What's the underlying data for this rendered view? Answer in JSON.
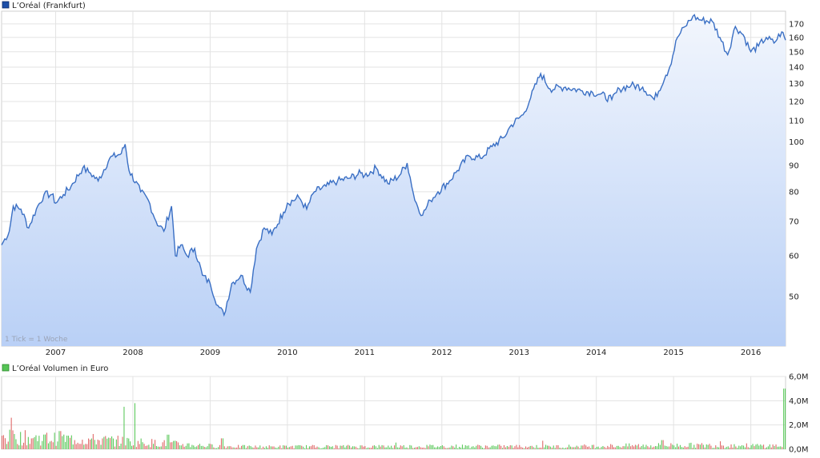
{
  "chart_data": [
    {
      "type": "area",
      "legend": "L’Oréal (Frankfurt)",
      "series_color": "#3a6fc4",
      "fill_top": "#f2f6fd",
      "fill_bottom": "#b9d0f6",
      "note": "1 Tick = 1 Woche",
      "yscale": "log",
      "ylim": [
        40,
        180
      ],
      "yticks": [
        50,
        60,
        70,
        80,
        90,
        100,
        110,
        120,
        130,
        140,
        150,
        160,
        170
      ],
      "xlim": [
        2006.3,
        2016.45
      ],
      "xticks": [
        "2007",
        "2008",
        "2009",
        "2010",
        "2011",
        "2012",
        "2013",
        "2014",
        "2015",
        "2016"
      ],
      "points": [
        [
          2006.3,
          63
        ],
        [
          2006.4,
          67
        ],
        [
          2006.45,
          75
        ],
        [
          2006.55,
          74
        ],
        [
          2006.65,
          68
        ],
        [
          2006.75,
          74
        ],
        [
          2006.85,
          79
        ],
        [
          2006.95,
          79
        ],
        [
          2007.0,
          76
        ],
        [
          2007.1,
          79
        ],
        [
          2007.2,
          82
        ],
        [
          2007.35,
          89
        ],
        [
          2007.45,
          87
        ],
        [
          2007.55,
          84
        ],
        [
          2007.7,
          93
        ],
        [
          2007.85,
          95
        ],
        [
          2007.9,
          99
        ],
        [
          2007.95,
          88
        ],
        [
          2008.1,
          80
        ],
        [
          2008.2,
          77
        ],
        [
          2008.3,
          70
        ],
        [
          2008.4,
          67
        ],
        [
          2008.5,
          75
        ],
        [
          2008.55,
          60
        ],
        [
          2008.62,
          63
        ],
        [
          2008.7,
          60
        ],
        [
          2008.8,
          62
        ],
        [
          2008.9,
          55
        ],
        [
          2009.0,
          53
        ],
        [
          2009.1,
          48
        ],
        [
          2009.18,
          46
        ],
        [
          2009.28,
          53
        ],
        [
          2009.4,
          55
        ],
        [
          2009.52,
          51
        ],
        [
          2009.6,
          62
        ],
        [
          2009.7,
          68
        ],
        [
          2009.8,
          66
        ],
        [
          2009.95,
          73
        ],
        [
          2010.0,
          76
        ],
        [
          2010.15,
          78
        ],
        [
          2010.25,
          74
        ],
        [
          2010.35,
          80
        ],
        [
          2010.5,
          82
        ],
        [
          2010.65,
          84
        ],
        [
          2010.8,
          85
        ],
        [
          2010.95,
          87
        ],
        [
          2011.0,
          86
        ],
        [
          2011.15,
          89
        ],
        [
          2011.3,
          83
        ],
        [
          2011.45,
          86
        ],
        [
          2011.55,
          91
        ],
        [
          2011.65,
          77
        ],
        [
          2011.75,
          72
        ],
        [
          2011.85,
          77
        ],
        [
          2011.95,
          80
        ],
        [
          2012.1,
          84
        ],
        [
          2012.2,
          88
        ],
        [
          2012.35,
          94
        ],
        [
          2012.5,
          93
        ],
        [
          2012.65,
          98
        ],
        [
          2012.8,
          102
        ],
        [
          2012.9,
          108
        ],
        [
          2013.05,
          113
        ],
        [
          2013.15,
          122
        ],
        [
          2013.28,
          136
        ],
        [
          2013.4,
          127
        ],
        [
          2013.6,
          128
        ],
        [
          2013.8,
          126
        ],
        [
          2013.95,
          125
        ],
        [
          2014.05,
          124
        ],
        [
          2014.2,
          121
        ],
        [
          2014.3,
          127
        ],
        [
          2014.45,
          129
        ],
        [
          2014.6,
          128
        ],
        [
          2014.75,
          121
        ],
        [
          2014.9,
          135
        ],
        [
          2014.95,
          140
        ],
        [
          2015.05,
          160
        ],
        [
          2015.15,
          168
        ],
        [
          2015.25,
          176
        ],
        [
          2015.35,
          173
        ],
        [
          2015.5,
          172
        ],
        [
          2015.6,
          160
        ],
        [
          2015.7,
          148
        ],
        [
          2015.8,
          168
        ],
        [
          2015.9,
          162
        ],
        [
          2016.0,
          150
        ],
        [
          2016.1,
          154
        ],
        [
          2016.2,
          160
        ],
        [
          2016.3,
          156
        ],
        [
          2016.4,
          164
        ],
        [
          2016.45,
          158
        ]
      ]
    },
    {
      "type": "bar",
      "legend": "L’Oréal Volumen in Euro",
      "legend_color": "#55c455",
      "up_color": "#5cc95c",
      "down_color": "#e06a6a",
      "ylim": [
        0,
        6
      ],
      "yticks": [
        "6,0M",
        "4,0M",
        "2,0M",
        "0,0M"
      ],
      "ytick_values": [
        6,
        4,
        2,
        0
      ],
      "unit": "M",
      "bins_per_year": 50,
      "era_levels": [
        [
          2006.3,
          0.9
        ],
        [
          2007.5,
          0.7
        ],
        [
          2008.5,
          0.4
        ],
        [
          2009.0,
          0.25
        ],
        [
          2009.5,
          0.18
        ],
        [
          2012.0,
          0.22
        ],
        [
          2013.5,
          0.2
        ],
        [
          2015.0,
          0.3
        ],
        [
          2016.45,
          0.25
        ]
      ],
      "spikes": [
        [
          2006.42,
          2.6
        ],
        [
          2007.05,
          1.5
        ],
        [
          2007.88,
          3.5
        ],
        [
          2008.02,
          3.8
        ],
        [
          2008.45,
          1.2
        ],
        [
          2009.15,
          0.9
        ],
        [
          2011.4,
          0.55
        ],
        [
          2013.3,
          0.7
        ],
        [
          2014.85,
          0.75
        ],
        [
          2015.6,
          0.65
        ],
        [
          2016.43,
          5.0
        ]
      ]
    }
  ]
}
